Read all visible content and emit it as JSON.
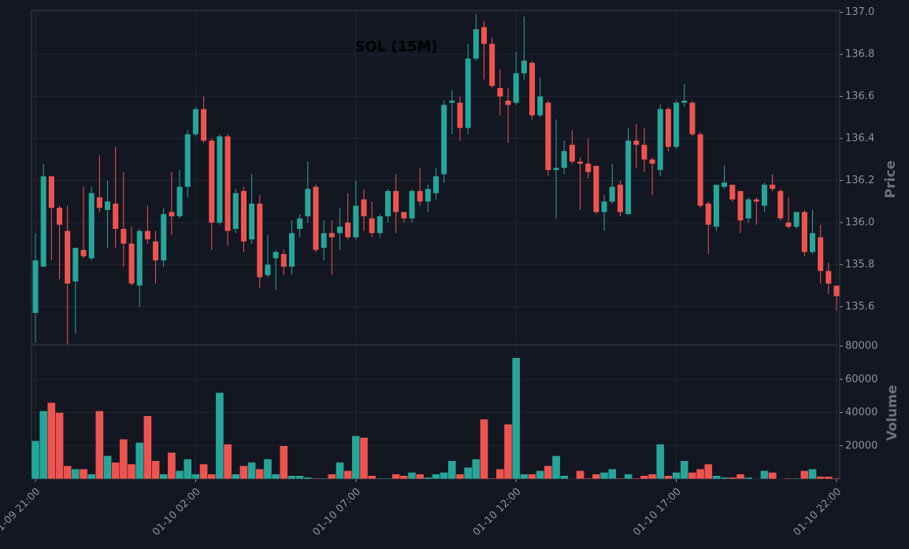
{
  "chart_data": {
    "type": "candlestick",
    "title": "SOL (15M)",
    "categories": [
      "01-09 21:00",
      null,
      null,
      null,
      null,
      null,
      null,
      null,
      null,
      null,
      null,
      null,
      null,
      null,
      null,
      null,
      null,
      null,
      null,
      null,
      "01-10 02:00",
      null,
      null,
      null,
      null,
      null,
      null,
      null,
      null,
      null,
      null,
      null,
      null,
      null,
      null,
      null,
      null,
      null,
      null,
      null,
      "01-10 07:00",
      null,
      null,
      null,
      null,
      null,
      null,
      null,
      null,
      null,
      null,
      null,
      null,
      null,
      null,
      null,
      null,
      null,
      null,
      null,
      "01-10 12:00",
      null,
      null,
      null,
      null,
      null,
      null,
      null,
      null,
      null,
      null,
      null,
      null,
      null,
      null,
      null,
      null,
      null,
      null,
      null,
      "01-10 17:00",
      null,
      null,
      null,
      null,
      null,
      null,
      null,
      null,
      null,
      null,
      null,
      null,
      null,
      null,
      null,
      null,
      null,
      null,
      null,
      "01-10 22:00"
    ],
    "open": [
      135.57,
      135.79,
      136.22,
      136.07,
      135.96,
      135.72,
      135.87,
      135.83,
      136.12,
      136.06,
      136.09,
      135.97,
      135.9,
      135.7,
      135.96,
      135.91,
      135.82,
      136.05,
      136.03,
      136.17,
      136.42,
      136.54,
      136.39,
      136.0,
      136.41,
      135.97,
      136.15,
      135.92,
      136.09,
      135.75,
      135.83,
      135.85,
      135.79,
      135.97,
      136.03,
      136.17,
      135.88,
      135.95,
      135.95,
      136.0,
      135.93,
      136.11,
      136.02,
      135.95,
      136.03,
      136.15,
      136.05,
      136.02,
      136.15,
      136.1,
      136.14,
      136.23,
      136.57,
      136.57,
      136.45,
      136.78,
      136.93,
      136.85,
      136.64,
      136.58,
      136.57,
      136.71,
      136.76,
      136.51,
      136.57,
      136.25,
      136.26,
      136.37,
      136.29,
      136.28,
      136.27,
      136.05,
      136.1,
      136.18,
      136.04,
      136.39,
      136.37,
      136.3,
      136.25,
      136.54,
      136.36,
      136.57,
      136.57,
      136.42,
      136.09,
      135.98,
      136.17,
      136.18,
      136.15,
      136.02,
      136.11,
      136.08,
      136.18,
      136.15,
      136.0,
      135.98,
      136.05,
      135.86,
      135.93,
      135.77,
      135.7
    ],
    "high": [
      135.95,
      136.28,
      136.22,
      136.08,
      136.08,
      135.88,
      136.17,
      136.17,
      136.32,
      136.2,
      136.36,
      136.24,
      135.98,
      135.97,
      136.08,
      135.96,
      136.07,
      136.24,
      136.25,
      136.44,
      136.55,
      136.6,
      136.4,
      136.42,
      136.42,
      136.16,
      136.17,
      136.23,
      136.13,
      135.94,
      135.87,
      135.87,
      136.01,
      136.04,
      136.29,
      136.18,
      136.01,
      136.01,
      136.07,
      136.14,
      136.2,
      136.16,
      136.1,
      136.04,
      136.16,
      136.23,
      136.05,
      136.16,
      136.26,
      136.18,
      136.26,
      136.58,
      136.63,
      136.6,
      136.85,
      136.99,
      136.96,
      136.88,
      136.73,
      136.64,
      136.81,
      136.98,
      136.77,
      136.69,
      136.58,
      136.49,
      136.39,
      136.44,
      136.31,
      136.4,
      136.27,
      136.13,
      136.28,
      136.2,
      136.45,
      136.47,
      136.45,
      136.31,
      136.56,
      136.55,
      136.58,
      136.66,
      136.58,
      136.43,
      136.1,
      136.18,
      136.27,
      136.18,
      136.15,
      136.12,
      136.12,
      136.19,
      136.23,
      136.16,
      136.12,
      136.05,
      136.06,
      136.06,
      135.99,
      135.81,
      135.7
    ],
    "low": [
      135.43,
      135.79,
      135.82,
      135.73,
      135.42,
      135.47,
      135.83,
      135.82,
      136.05,
      135.88,
      135.88,
      135.79,
      135.7,
      135.6,
      135.9,
      135.71,
      135.79,
      135.94,
      136.02,
      136.12,
      136.41,
      136.38,
      135.87,
      135.99,
      135.89,
      135.95,
      135.86,
      135.9,
      135.69,
      135.74,
      135.68,
      135.75,
      135.75,
      135.93,
      136.0,
      135.86,
      135.82,
      135.75,
      135.87,
      135.92,
      135.92,
      135.96,
      135.93,
      135.93,
      136.0,
      135.95,
      136.0,
      136.0,
      136.08,
      136.05,
      136.11,
      136.19,
      136.42,
      136.39,
      136.42,
      136.77,
      136.68,
      136.64,
      136.51,
      136.38,
      136.56,
      136.68,
      136.49,
      136.5,
      136.22,
      136.02,
      136.23,
      136.28,
      136.06,
      136.21,
      136.04,
      135.96,
      136.09,
      136.03,
      136.04,
      136.26,
      136.24,
      136.13,
      136.22,
      136.34,
      136.35,
      136.55,
      136.41,
      136.07,
      135.85,
      135.96,
      136.16,
      136.1,
      135.95,
      136.0,
      135.99,
      136.05,
      136.15,
      136.01,
      135.97,
      135.97,
      135.84,
      135.85,
      135.71,
      135.66,
      135.58
    ],
    "close": [
      135.82,
      136.22,
      136.07,
      135.99,
      135.71,
      135.88,
      135.84,
      136.14,
      136.07,
      136.1,
      135.97,
      135.9,
      135.71,
      135.96,
      135.92,
      135.82,
      136.04,
      136.03,
      136.17,
      136.42,
      136.54,
      136.39,
      136.0,
      136.41,
      135.96,
      136.14,
      135.91,
      136.09,
      135.74,
      135.8,
      135.86,
      135.79,
      135.95,
      136.02,
      136.16,
      135.87,
      135.95,
      135.93,
      135.98,
      135.93,
      136.08,
      136.03,
      135.95,
      136.03,
      136.15,
      136.05,
      136.02,
      136.15,
      136.1,
      136.16,
      136.22,
      136.56,
      136.58,
      136.45,
      136.78,
      136.92,
      136.85,
      136.65,
      136.6,
      136.56,
      136.71,
      136.77,
      136.51,
      136.6,
      136.25,
      136.26,
      136.34,
      136.29,
      136.28,
      136.24,
      136.05,
      136.1,
      136.17,
      136.05,
      136.39,
      136.37,
      136.3,
      136.28,
      136.54,
      136.36,
      136.57,
      136.58,
      136.42,
      136.08,
      135.99,
      136.18,
      136.19,
      136.11,
      136.01,
      136.11,
      136.1,
      136.18,
      136.16,
      136.02,
      135.98,
      136.05,
      135.86,
      135.95,
      135.77,
      135.71,
      135.65
    ],
    "volume": [
      23000,
      41000,
      46000,
      40000,
      8000,
      6000,
      6000,
      3000,
      41000,
      14000,
      10000,
      24000,
      9000,
      22000,
      38000,
      11000,
      3000,
      16000,
      5000,
      12000,
      3000,
      9000,
      3000,
      52000,
      21000,
      3000,
      8000,
      10000,
      6000,
      12000,
      3000,
      20000,
      2000,
      2000,
      1000,
      500,
      500,
      3000,
      10000,
      5000,
      26000,
      25000,
      2000,
      500,
      500,
      3000,
      2000,
      4000,
      3000,
      1000,
      3000,
      4000,
      11000,
      3000,
      7000,
      12000,
      36000,
      500,
      6000,
      33000,
      73000,
      3000,
      3000,
      5000,
      8000,
      14000,
      2000,
      300,
      5000,
      500,
      3000,
      4000,
      6000,
      500,
      3000,
      500,
      2000,
      3000,
      21000,
      2000,
      4000,
      11000,
      4000,
      6000,
      9000,
      2000,
      1000,
      1000,
      3000,
      1000,
      300,
      5000,
      4000,
      300,
      500,
      500,
      5000,
      6000,
      1500,
      1500,
      500
    ],
    "up_color": "#26a69a",
    "down_color": "#ef5350",
    "ylabel": "Price",
    "y2label": "Volume",
    "ylim": [
      135.42,
      137.01
    ],
    "yticks": [
      135.6,
      135.8,
      {
        "value": 136,
        "label": "136.0"
      },
      136.2,
      136.4,
      136.6,
      136.8,
      {
        "value": 137,
        "label": "137.0"
      }
    ],
    "y2lim": [
      0,
      80000
    ],
    "y2ticks": [
      20000,
      40000,
      60000,
      80000
    ],
    "grid": true
  }
}
